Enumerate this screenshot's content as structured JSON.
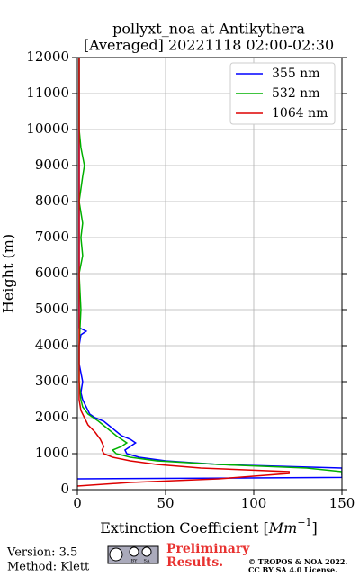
{
  "chart_data": {
    "type": "profile",
    "title": [
      "pollyxt_noa at Antikythera",
      "[Averaged] 20221118 02:00-02:30"
    ],
    "xlabel": [
      "Extinction Coefficient [",
      "Mm",
      "−1",
      "]"
    ],
    "ylabel": "Height (m)",
    "xlim": [
      0,
      150
    ],
    "ylim": [
      0,
      12000
    ],
    "xticks": [
      0,
      50,
      100,
      150
    ],
    "yticks": [
      0,
      1000,
      2000,
      3000,
      4000,
      5000,
      6000,
      7000,
      8000,
      9000,
      10000,
      11000,
      12000
    ],
    "grid": true,
    "legend": "upper right",
    "series": [
      {
        "name": "355 nm",
        "color": "#0000ff",
        "y": [
          300,
          340,
          400,
          500,
          600,
          700,
          800,
          900,
          1000,
          1100,
          1200,
          1300,
          1400,
          1500,
          1700,
          1900,
          2000,
          2100,
          2300,
          2500,
          2700,
          3000,
          3500,
          4000,
          4300,
          4400,
          4500,
          5000,
          6000,
          7000,
          8000,
          9000,
          10000,
          11000,
          12000
        ],
        "values": [
          0,
          150,
          150,
          150,
          150,
          80,
          50,
          35,
          28,
          27,
          30,
          33,
          30,
          25,
          20,
          15,
          10,
          7,
          5,
          3,
          2,
          3,
          1,
          1,
          2,
          5,
          1,
          1,
          1,
          1,
          1,
          1,
          1,
          1,
          1
        ]
      },
      {
        "name": "532 nm",
        "color": "#00b000",
        "y": [
          400,
          500,
          600,
          700,
          800,
          900,
          1000,
          1100,
          1200,
          1300,
          1500,
          1700,
          1900,
          2100,
          2300,
          2500,
          3000,
          4000,
          5000,
          6000,
          6500,
          7000,
          7400,
          8000,
          8700,
          9000,
          9500,
          10000,
          11000,
          12000
        ],
        "values": [
          150,
          150,
          130,
          80,
          45,
          30,
          22,
          20,
          25,
          28,
          22,
          17,
          12,
          6,
          3,
          2,
          1,
          1,
          2,
          1,
          3,
          2,
          3,
          1,
          3,
          4,
          2,
          1,
          1,
          1
        ]
      },
      {
        "name": "1064 nm",
        "color": "#dd0000",
        "y": [
          100,
          200,
          300,
          450,
          500,
          600,
          700,
          800,
          900,
          1000,
          1100,
          1200,
          1400,
          1600,
          1800,
          2000,
          2200,
          2500,
          4000,
          6000,
          8000,
          10000,
          12000
        ],
        "values": [
          0,
          30,
          80,
          120,
          120,
          70,
          45,
          30,
          20,
          15,
          14,
          15,
          13,
          10,
          6,
          4,
          2,
          1,
          1,
          1,
          1,
          1,
          1
        ]
      }
    ]
  },
  "footer": {
    "version": "Version: 3.5",
    "method": "Method: Klett",
    "badge": [
      "BY",
      "SA"
    ],
    "preliminary": [
      "Preliminary",
      "Results."
    ],
    "copyright": [
      "© TROPOS & NOA 2022.",
      "CC BY SA 4.0 License."
    ]
  }
}
